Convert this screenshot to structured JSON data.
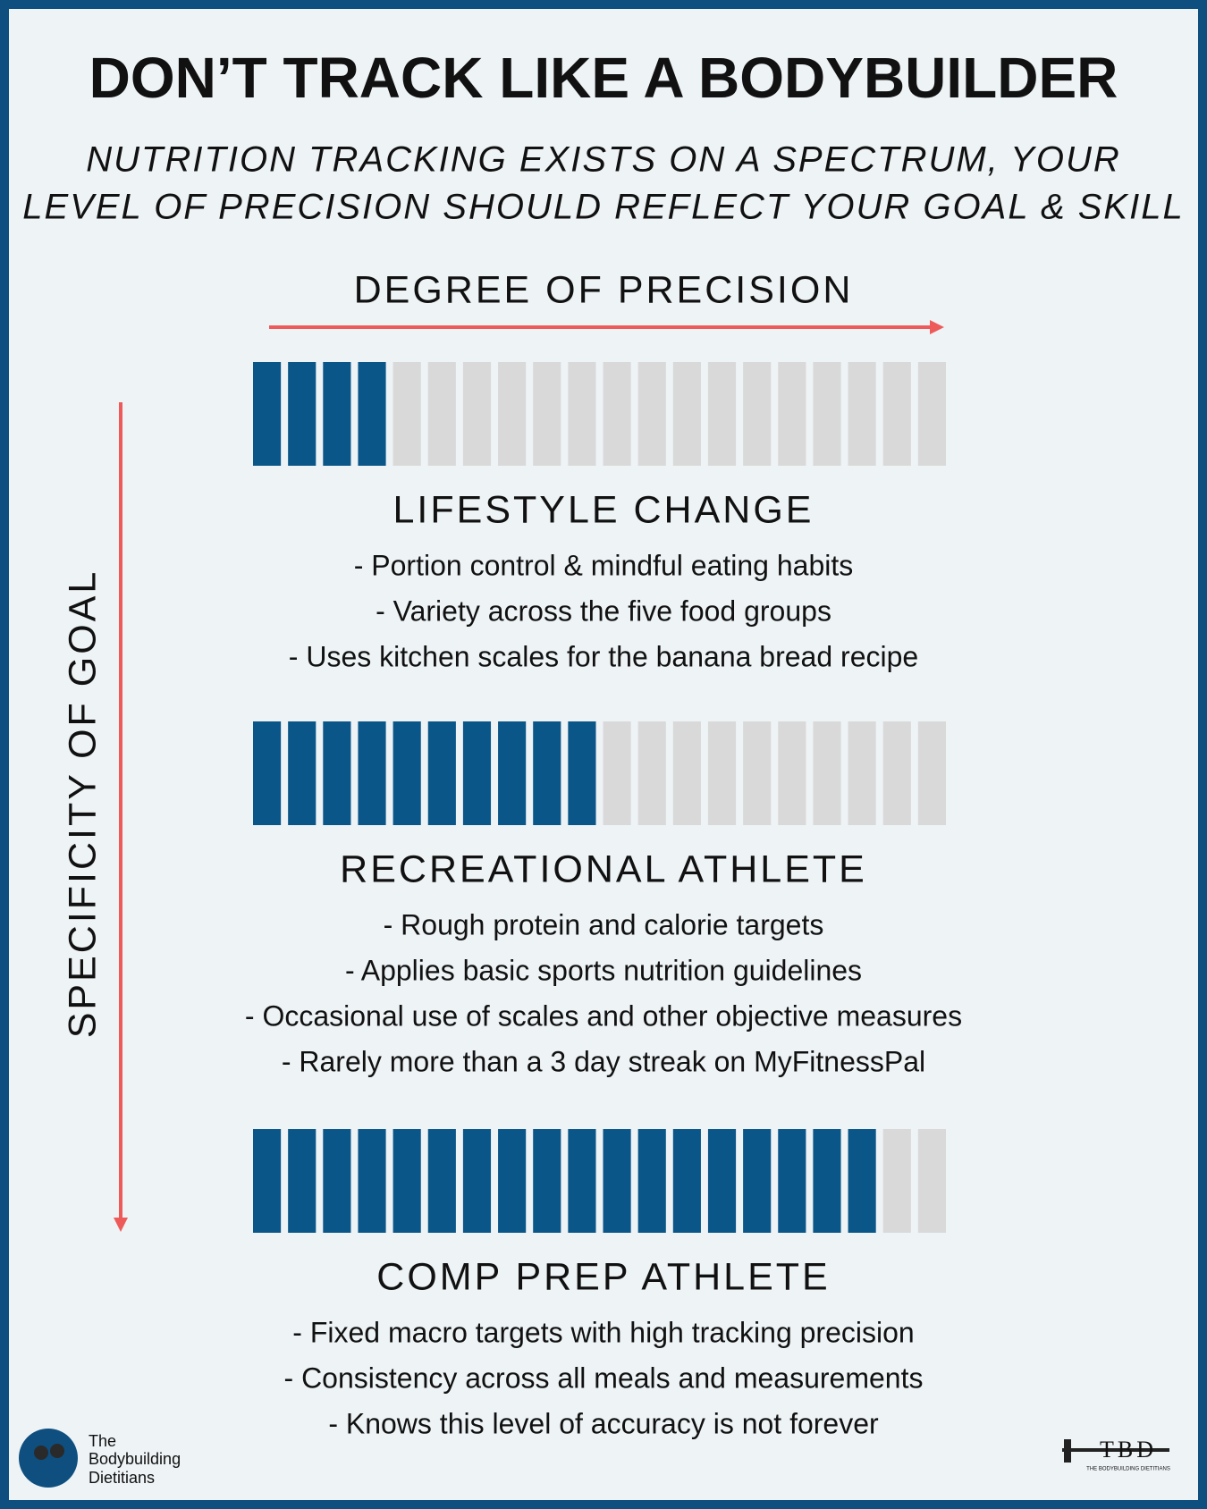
{
  "header": {
    "title": "DON’T TRACK LIKE A BODYBUILDER",
    "subtitle": [
      "NUTRITION TRACKING EXISTS ON A SPECTRUM, YOUR",
      "LEVEL OF PRECISION SHOULD REFLECT YOUR GOAL & SKILL"
    ]
  },
  "x_axis_label": "DEGREE OF PRECISION",
  "y_axis_label": "SPECIFICITY OF GOAL",
  "levels": [
    {
      "title": "LIFESTYLE CHANGE",
      "filled": 4,
      "total": 20,
      "bullets": [
        "- Portion control & mindful eating habits",
        "- Variety across the five food groups",
        "- Uses kitchen scales for the banana bread recipe"
      ]
    },
    {
      "title": "RECREATIONAL ATHLETE",
      "filled": 10,
      "total": 20,
      "bullets": [
        "- Rough protein and calorie targets",
        "- Applies basic sports nutrition guidelines",
        "- Occasional use of scales and other objective measures",
        "- Rarely more than a 3 day streak on MyFitnessPal"
      ]
    },
    {
      "title": "COMP PREP ATHLETE",
      "filled": 18,
      "total": 20,
      "bullets": [
        "- Fixed macro targets with high tracking precision",
        "- Consistency across all meals and measurements",
        "- Knows this level of accuracy is not forever"
      ]
    }
  ],
  "footer": {
    "brand": [
      "The",
      "Bodybuilding",
      "Dietitians"
    ],
    "logo": "TBD",
    "logo_tagline": "THE BODYBUILDING DIETITIANS"
  }
}
